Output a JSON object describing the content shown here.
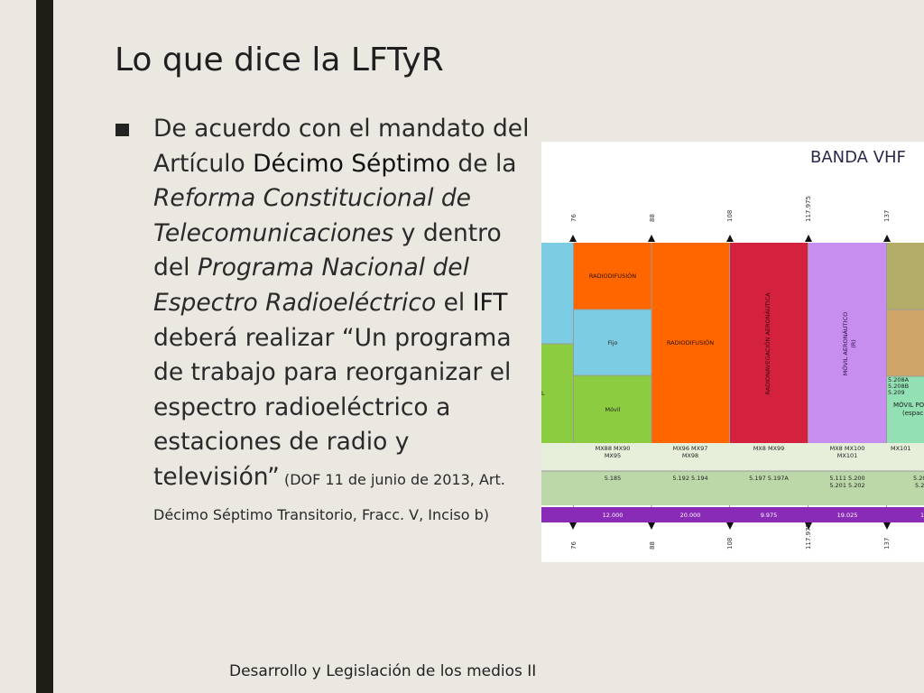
{
  "slide": {
    "title": "Lo que dice la LFTyR",
    "footer": "Desarrollo y Legislación de los medios II",
    "bullet": {
      "part1": "De acuerdo con el mandato del Artículo ",
      "part2": "Décimo Séptimo",
      "part3": " de la ",
      "part4": "Reforma Constitucional de Telecomunicaciones",
      "part5": " y dentro del ",
      "part6": "Programa Nacional del Espectro Radioeléctrico",
      "part7": " el ",
      "part8": "IFT",
      "part9": " deberá realizar “Un programa de trabajo para reorganizar el espectro radioeléctrico a estaciones de radio y televisión”",
      "part10": " (DOF 11 de junio de 2013, Art. Décimo Séptimo Transitorio, Fracc. V, Inciso b)"
    }
  },
  "band_chart": {
    "title": "BANDA VHF",
    "boundaries_mhz": [
      "76",
      "88",
      "108",
      "117.975",
      "137"
    ],
    "blocks": [
      {
        "label": "",
        "color": "#7ccde3"
      },
      {
        "label": "",
        "color": "#8ccc40"
      },
      {
        "label": "RADIODIFUSIÓN",
        "color": "#ff6600"
      },
      {
        "label": "Fijo",
        "color": "#7ccde3"
      },
      {
        "label": "Móvil",
        "color": "#8ccc40"
      },
      {
        "label": "RADIODIFUSIÓN",
        "color": "#ff6600"
      },
      {
        "label": "RADIONAVEGACIÓN AERONÁUTICA",
        "color": "#d4213d"
      },
      {
        "label": "MÓVIL AERONÁUTICO",
        "label2": "(R)",
        "color": "#c78ef0"
      },
      {
        "label": "",
        "color": "#b3ad69"
      },
      {
        "label": "",
        "color": "#cfa56a"
      },
      {
        "label": "MÓVIL PO",
        "label2": "(espac",
        "color": "#92e0b3"
      }
    ],
    "left_stub_label": "L",
    "mx_row": [
      {
        "line1": "MX88 MX90",
        "line2": "MX95"
      },
      {
        "line1": "MX96 MX97",
        "line2": "MX98"
      },
      {
        "line1": "MX8 MX99",
        "line2": ""
      },
      {
        "line1": "MX8 MX100",
        "line2": "MX101"
      },
      {
        "line1": "MX101",
        "line2": ""
      }
    ],
    "footnote_row": [
      {
        "line1": "5.185",
        "line2": ""
      },
      {
        "line1": "5.192 5.194",
        "line2": ""
      },
      {
        "line1": "5.197 5.197A",
        "line2": ""
      },
      {
        "line1": "5.111 5.200",
        "line2": "5.201 5.202"
      },
      {
        "line1": "5.20",
        "line2": "5.2"
      }
    ],
    "side_notes": [
      "5.208A",
      "5.208B",
      "5.209"
    ],
    "width_khz": [
      "12.000",
      "20.000",
      "9.975",
      "19.025",
      "1"
    ],
    "colors": {
      "purple_bar": "#8a2bb8",
      "table_light": "#e5efd9",
      "table_mid": "#bcd7a8",
      "grid": "#b0b0b0"
    }
  }
}
